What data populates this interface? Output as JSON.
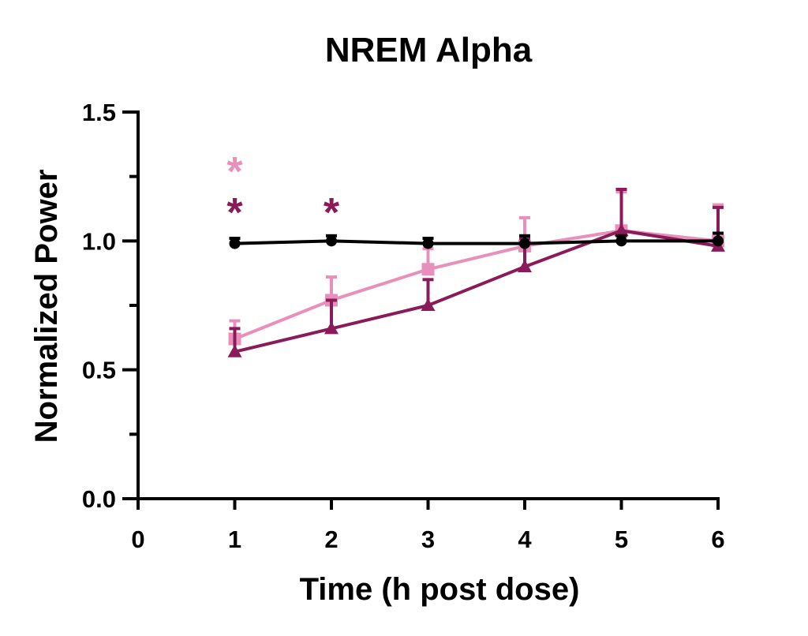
{
  "chart_data": {
    "type": "line",
    "title": "NREM Alpha",
    "xlabel": "Time (h post dose)",
    "ylabel": "Normalized Power",
    "xlim": [
      0,
      6
    ],
    "ylim": [
      0,
      1.5
    ],
    "x_ticks": [
      "0",
      "1",
      "2",
      "3",
      "4",
      "5",
      "6"
    ],
    "y_ticks": [
      "0.0",
      "0.5",
      "1.0",
      "1.5"
    ],
    "grid": false,
    "legend": "none",
    "series": [
      {
        "color": "#e890bb",
        "marker": "square",
        "x": [
          1,
          2,
          3,
          4,
          5,
          6
        ],
        "y": [
          0.62,
          0.77,
          0.89,
          0.98,
          1.04,
          1.0
        ],
        "error": [
          0.07,
          0.09,
          0.08,
          0.11,
          0.15,
          0.14
        ]
      },
      {
        "color": "#8b1a58",
        "marker": "triangle",
        "x": [
          1,
          2,
          3,
          4,
          5,
          6
        ],
        "y": [
          0.57,
          0.66,
          0.75,
          0.9,
          1.04,
          0.98
        ],
        "error": [
          0.09,
          0.11,
          0.1,
          0.11,
          0.16,
          0.15
        ]
      },
      {
        "color": "#000000",
        "marker": "circle",
        "x": [
          1,
          2,
          3,
          4,
          5,
          6
        ],
        "y": [
          0.99,
          1.0,
          0.99,
          0.99,
          1.0,
          1.0
        ],
        "error": [
          0.02,
          0.02,
          0.02,
          0.03,
          0.02,
          0.03
        ]
      }
    ],
    "annotations": [
      {
        "text": "*",
        "x": 1,
        "y": 1.32,
        "color": "#e890bb"
      },
      {
        "text": "*",
        "x": 1,
        "y": 1.16,
        "color": "#8b1a58"
      },
      {
        "text": "*",
        "x": 2,
        "y": 1.16,
        "color": "#8b1a58"
      }
    ]
  }
}
